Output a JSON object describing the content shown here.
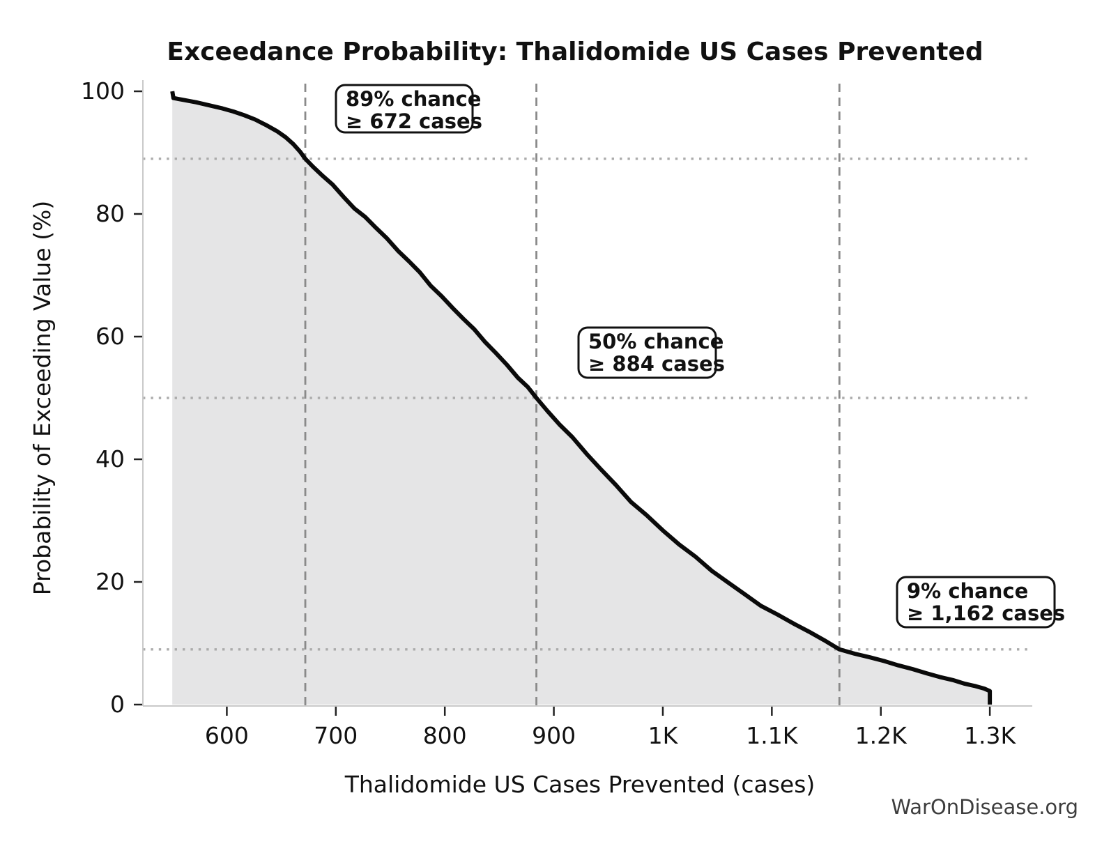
{
  "page": {
    "watermark": "WarOnDisease.org"
  },
  "chart_data": {
    "type": "area",
    "title": "Exceedance Probability: Thalidomide US Cases Prevented",
    "xlabel": "Thalidomide US Cases Prevented (cases)",
    "ylabel": "Probability of Exceeding Value (%)",
    "xlim": [
      523,
      1337
    ],
    "ylim": [
      0,
      100
    ],
    "legend": "none",
    "grid": "dotted horizontal lines at annotated probabilities; dashed vertical lines at annotated values",
    "x_ticks": [
      {
        "value": 600,
        "label": "600"
      },
      {
        "value": 700,
        "label": "700"
      },
      {
        "value": 800,
        "label": "800"
      },
      {
        "value": 900,
        "label": "900"
      },
      {
        "value": 1000,
        "label": "1K"
      },
      {
        "value": 1100,
        "label": "1.1K"
      },
      {
        "value": 1200,
        "label": "1.2K"
      },
      {
        "value": 1300,
        "label": "1.3K"
      }
    ],
    "y_ticks": [
      {
        "value": 0,
        "label": "0"
      },
      {
        "value": 20,
        "label": "20"
      },
      {
        "value": 40,
        "label": "40"
      },
      {
        "value": 60,
        "label": "60"
      },
      {
        "value": 80,
        "label": "80"
      },
      {
        "value": 100,
        "label": "100"
      }
    ],
    "series": [
      {
        "name": "exceedance-curve",
        "points": [
          [
            550,
            100
          ],
          [
            551,
            98.9
          ],
          [
            560,
            98.6
          ],
          [
            572,
            98.2
          ],
          [
            584,
            97.7
          ],
          [
            596,
            97.2
          ],
          [
            606,
            96.7
          ],
          [
            616,
            96.1
          ],
          [
            626,
            95.4
          ],
          [
            636,
            94.5
          ],
          [
            646,
            93.5
          ],
          [
            654,
            92.5
          ],
          [
            661,
            91.4
          ],
          [
            667,
            90.2
          ],
          [
            672,
            89.0
          ],
          [
            679,
            87.7
          ],
          [
            688,
            86.2
          ],
          [
            697,
            84.8
          ],
          [
            707,
            82.8
          ],
          [
            717,
            80.9
          ],
          [
            727,
            79.5
          ],
          [
            737,
            77.7
          ],
          [
            747,
            76.0
          ],
          [
            757,
            74.0
          ],
          [
            767,
            72.3
          ],
          [
            777,
            70.5
          ],
          [
            787,
            68.3
          ],
          [
            797,
            66.6
          ],
          [
            807,
            64.7
          ],
          [
            817,
            62.9
          ],
          [
            827,
            61.2
          ],
          [
            837,
            59.1
          ],
          [
            847,
            57.3
          ],
          [
            857,
            55.4
          ],
          [
            867,
            53.3
          ],
          [
            876,
            51.8
          ],
          [
            884,
            50.0
          ],
          [
            894,
            47.9
          ],
          [
            905,
            45.7
          ],
          [
            917,
            43.6
          ],
          [
            930,
            40.9
          ],
          [
            943,
            38.4
          ],
          [
            957,
            35.8
          ],
          [
            971,
            33.0
          ],
          [
            985,
            30.9
          ],
          [
            1000,
            28.4
          ],
          [
            1015,
            26.1
          ],
          [
            1030,
            24.1
          ],
          [
            1045,
            21.8
          ],
          [
            1060,
            19.9
          ],
          [
            1075,
            18.0
          ],
          [
            1090,
            16.1
          ],
          [
            1105,
            14.7
          ],
          [
            1120,
            13.2
          ],
          [
            1134,
            11.9
          ],
          [
            1148,
            10.5
          ],
          [
            1162,
            9.0
          ],
          [
            1176,
            8.3
          ],
          [
            1190,
            7.7
          ],
          [
            1203,
            7.1
          ],
          [
            1216,
            6.4
          ],
          [
            1229,
            5.8
          ],
          [
            1242,
            5.1
          ],
          [
            1254,
            4.5
          ],
          [
            1266,
            4.0
          ],
          [
            1277,
            3.4
          ],
          [
            1287,
            3.0
          ],
          [
            1295,
            2.6
          ],
          [
            1300,
            2.2
          ],
          [
            1300,
            0
          ]
        ]
      }
    ],
    "annotations": [
      {
        "probability_pct": 89,
        "value_cases": 672,
        "line1": "89% chance",
        "line2": "≥ 672 cases"
      },
      {
        "probability_pct": 50,
        "value_cases": 884,
        "line1": "50% chance",
        "line2": "≥ 884 cases"
      },
      {
        "probability_pct": 9,
        "value_cases": 1162,
        "line1": "9% chance",
        "line2": "≥ 1,162 cases"
      }
    ],
    "colors": {
      "curve": "#0a0a0a",
      "fill": "#e5e5e6",
      "dashed_reference": "#8a8a8a",
      "dotted_reference": "#ababab",
      "spine": "#c9c9c9",
      "tick": "#222222",
      "text": "#111111",
      "annotation_border": "#111111",
      "annotation_bg": "#ffffff",
      "watermark": "#3d3d3d"
    }
  }
}
